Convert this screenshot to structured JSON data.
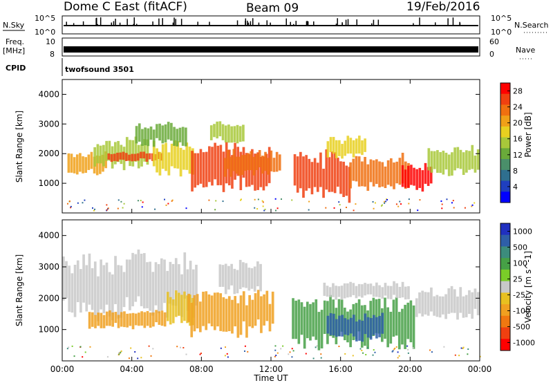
{
  "header": {
    "radar": "Dome C East (fitACF)",
    "beam": "Beam 09",
    "date": "19/Feb/2016"
  },
  "strips": {
    "nsky_label": "N.Sky",
    "nsky_top": "10^5",
    "nsky_bottom": "10^0",
    "nsearch_label": "N.Search",
    "nsearch_top": "10^5",
    "nsearch_bottom": "10^0",
    "freq_label": "Freq.",
    "freq_unit": "[MHz]",
    "freq_top": "10",
    "freq_bottom": "8",
    "nave_label": "Nave",
    "nave_top": "60",
    "nave_bottom": "0",
    "cpid_label": "CPID",
    "cpid_value": "twofsound 3501"
  },
  "chart_data": [
    {
      "type": "heatmap",
      "panel": "power",
      "xlabel": "Time UT",
      "ylabel": "Slant Range [km]",
      "xlim_hours": [
        0,
        24
      ],
      "ylim_km": [
        0,
        4500
      ],
      "x_tick_labels": [
        "00:00",
        "04:00",
        "08:00",
        "12:00",
        "16:00",
        "20:00",
        "00:00"
      ],
      "y_tick_labels": [
        "1000",
        "2000",
        "3000",
        "4000"
      ],
      "colorbar": {
        "label": "Power [dB]",
        "ticks": [
          "4",
          "8",
          "12",
          "16",
          "20",
          "24",
          "28"
        ],
        "range": [
          0,
          30
        ],
        "colors": [
          "#0000ff",
          "#1f3fbf",
          "#2f6f8f",
          "#4a8f6a",
          "#6aaa3a",
          "#a8c83a",
          "#e8d020",
          "#f0a018",
          "#f07010",
          "#f04010",
          "#ff0000"
        ]
      },
      "regions": [
        {
          "t0": 0.3,
          "t1": 2.6,
          "r0": 1350,
          "r1": 2050,
          "value": 20
        },
        {
          "t0": 1.8,
          "t1": 5.0,
          "r0": 1500,
          "r1": 2450,
          "value": 16
        },
        {
          "t0": 2.6,
          "t1": 5.8,
          "r0": 1750,
          "r1": 2050,
          "value": 27
        },
        {
          "t0": 5.2,
          "t1": 7.6,
          "r0": 1300,
          "r1": 2350,
          "value": 18
        },
        {
          "t0": 4.2,
          "t1": 7.2,
          "r0": 2300,
          "r1": 3000,
          "value": 13
        },
        {
          "t0": 7.4,
          "t1": 12.0,
          "r0": 800,
          "r1": 2300,
          "value": 27
        },
        {
          "t0": 9.3,
          "t1": 12.6,
          "r0": 1300,
          "r1": 2050,
          "value": 22
        },
        {
          "t0": 8.5,
          "t1": 10.5,
          "r0": 2400,
          "r1": 3050,
          "value": 15
        },
        {
          "t0": 13.3,
          "t1": 16.6,
          "r0": 500,
          "r1": 1950,
          "value": 27
        },
        {
          "t0": 15.2,
          "t1": 17.5,
          "r0": 1900,
          "r1": 2550,
          "value": 19
        },
        {
          "t0": 16.5,
          "t1": 20.0,
          "r0": 800,
          "r1": 1900,
          "value": 24
        },
        {
          "t0": 19.5,
          "t1": 21.3,
          "r0": 800,
          "r1": 1600,
          "value": 28
        },
        {
          "t0": 21.0,
          "t1": 24.0,
          "r0": 1300,
          "r1": 2200,
          "value": 14
        }
      ]
    },
    {
      "type": "heatmap",
      "panel": "velocity",
      "xlabel": "Time UT",
      "ylabel": "Slant Range [km]",
      "xlim_hours": [
        0,
        24
      ],
      "ylim_km": [
        0,
        4500
      ],
      "x_tick_labels": [
        "00:00",
        "04:00",
        "08:00",
        "12:00",
        "16:00",
        "20:00",
        "00:00"
      ],
      "y_tick_labels": [
        "1000",
        "2000",
        "3000",
        "4000"
      ],
      "colorbar": {
        "label": "Velocity [m s^-1]",
        "ticks": [
          "1000",
          "500",
          "100",
          "25",
          "-25",
          "-100",
          "-500",
          "-1000"
        ],
        "colors": [
          "#2030c0",
          "#2e5ea8",
          "#3c8c7c",
          "#46a046",
          "#7acc28",
          "#c8c8c8",
          "#e8c020",
          "#f0a020",
          "#f07810",
          "#f04010",
          "#ff0000"
        ]
      },
      "regions": [
        {
          "t0": 0.0,
          "t1": 7.8,
          "r0": 1500,
          "r1": 3300,
          "value": 0
        },
        {
          "t0": 1.5,
          "t1": 6.0,
          "r0": 1050,
          "r1": 1600,
          "value": -300
        },
        {
          "t0": 6.0,
          "t1": 7.6,
          "r0": 1200,
          "r1": 2300,
          "value": -150
        },
        {
          "t0": 7.2,
          "t1": 12.2,
          "r0": 900,
          "r1": 2200,
          "value": -400
        },
        {
          "t0": 9.0,
          "t1": 11.5,
          "r0": 2200,
          "r1": 3200,
          "value": 0
        },
        {
          "t0": 13.2,
          "t1": 20.3,
          "r0": 500,
          "r1": 2000,
          "value": 400
        },
        {
          "t0": 15.2,
          "t1": 18.5,
          "r0": 700,
          "r1": 1500,
          "value": 900
        },
        {
          "t0": 15.0,
          "t1": 20.0,
          "r0": 2000,
          "r1": 2500,
          "value": 80
        },
        {
          "t0": 20.3,
          "t1": 24.0,
          "r0": 1400,
          "r1": 2300,
          "value": 0
        }
      ]
    }
  ]
}
